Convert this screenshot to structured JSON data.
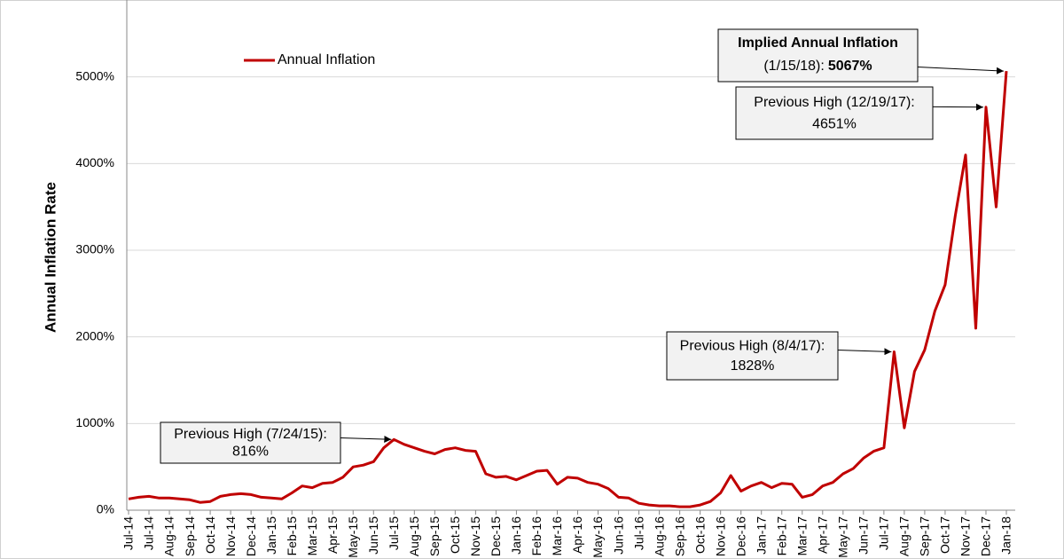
{
  "chart_data": {
    "type": "line",
    "y_axis_label": "Annual Inflation Rate",
    "legend_position": "top-left",
    "grid": true,
    "ylim": [
      0,
      6000
    ],
    "yticks": [
      {
        "value": 0,
        "label": "0%"
      },
      {
        "value": 1000,
        "label": "1000%"
      },
      {
        "value": 2000,
        "label": "2000%"
      },
      {
        "value": 3000,
        "label": "3000%"
      },
      {
        "value": 4000,
        "label": "4000%"
      },
      {
        "value": 5000,
        "label": "5000%"
      }
    ],
    "categories": [
      "Jul-14",
      null,
      "Jul-14",
      null,
      "Aug-14",
      null,
      "Sep-14",
      null,
      "Oct-14",
      null,
      "Nov-14",
      null,
      "Dec-14",
      null,
      "Jan-15",
      null,
      "Feb-15",
      null,
      "Mar-15",
      null,
      "Apr-15",
      null,
      "May-15",
      null,
      "Jun-15",
      null,
      "Jul-15",
      null,
      "Aug-15",
      null,
      "Sep-15",
      null,
      "Oct-15",
      null,
      "Nov-15",
      null,
      "Dec-15",
      null,
      "Jan-16",
      null,
      "Feb-16",
      null,
      "Mar-16",
      null,
      "Apr-16",
      null,
      "May-16",
      null,
      "Jun-16",
      null,
      "Jul-16",
      null,
      "Aug-16",
      null,
      "Sep-16",
      null,
      "Oct-16",
      null,
      "Nov-16",
      null,
      "Dec-16",
      null,
      "Jan-17",
      null,
      "Feb-17",
      null,
      "Mar-17",
      null,
      "Apr-17",
      null,
      "May-17",
      null,
      "Jun-17",
      null,
      "Jul-17",
      null,
      "Aug-17",
      null,
      "Sep-17",
      null,
      "Oct-17",
      null,
      "Nov-17",
      null,
      "Dec-17",
      null,
      "Jan-18"
    ],
    "series": [
      {
        "name": "Annual Inflation",
        "color": "#c00000",
        "values": [
          130,
          150,
          160,
          140,
          140,
          130,
          120,
          90,
          100,
          160,
          180,
          190,
          180,
          150,
          140,
          130,
          200,
          280,
          260,
          310,
          320,
          380,
          500,
          520,
          560,
          720,
          816,
          760,
          720,
          680,
          650,
          700,
          720,
          690,
          680,
          420,
          380,
          390,
          350,
          400,
          450,
          460,
          300,
          380,
          370,
          320,
          300,
          250,
          150,
          140,
          80,
          60,
          50,
          50,
          40,
          40,
          60,
          100,
          200,
          400,
          220,
          280,
          320,
          260,
          310,
          300,
          150,
          180,
          280,
          320,
          420,
          480,
          600,
          680,
          720,
          1828,
          950,
          1600,
          1850,
          2300,
          2600,
          3400,
          4100,
          2100,
          4651,
          3500,
          5067
        ]
      }
    ],
    "annotations": [
      {
        "label": "Previous High (7/24/15):",
        "value": 816,
        "value_label": "816%"
      },
      {
        "label": "Previous High (8/4/17):",
        "value": 1828,
        "value_label": "1828%"
      },
      {
        "label": "Previous High (12/19/17):",
        "value": 4651,
        "value_label": "4651%"
      },
      {
        "title": "Implied Annual Inflation",
        "label": "(1/15/18):",
        "value": 5067,
        "value_label": "5067%"
      }
    ]
  }
}
